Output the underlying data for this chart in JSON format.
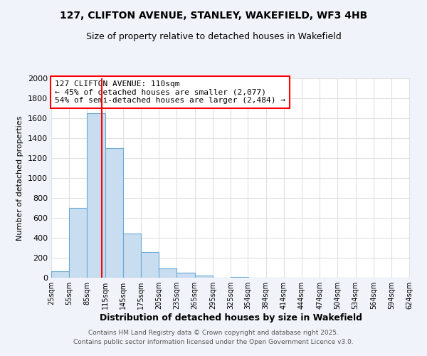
{
  "title": "127, CLIFTON AVENUE, STANLEY, WAKEFIELD, WF3 4HB",
  "subtitle": "Size of property relative to detached houses in Wakefield",
  "xlabel": "Distribution of detached houses by size in Wakefield",
  "ylabel": "Number of detached properties",
  "bins_left": [
    25,
    55,
    85,
    115,
    145,
    175,
    205,
    235,
    265,
    295,
    325,
    354,
    384,
    414,
    444,
    474,
    504,
    534,
    564,
    594
  ],
  "bin_width": 30,
  "counts": [
    65,
    700,
    1650,
    1300,
    440,
    255,
    90,
    50,
    25,
    0,
    10,
    0,
    0,
    0,
    0,
    0,
    0,
    0,
    0,
    0
  ],
  "bar_color": "#c9ddf0",
  "bar_edge_color": "#6aaad4",
  "vline_x": 110,
  "vline_color": "red",
  "ylim": [
    0,
    2000
  ],
  "yticks": [
    0,
    200,
    400,
    600,
    800,
    1000,
    1200,
    1400,
    1600,
    1800,
    2000
  ],
  "xlim_left": 25,
  "xlim_right": 625,
  "annotation_text": "127 CLIFTON AVENUE: 110sqm\n← 45% of detached houses are smaller (2,077)\n54% of semi-detached houses are larger (2,484) →",
  "annotation_box_color": "white",
  "annotation_box_edge_color": "red",
  "footer_line1": "Contains HM Land Registry data © Crown copyright and database right 2025.",
  "footer_line2": "Contains public sector information licensed under the Open Government Licence v3.0.",
  "tick_labels": [
    "25sqm",
    "55sqm",
    "85sqm",
    "115sqm",
    "145sqm",
    "175sqm",
    "205sqm",
    "235sqm",
    "265sqm",
    "295sqm",
    "325sqm",
    "354sqm",
    "384sqm",
    "414sqm",
    "444sqm",
    "474sqm",
    "504sqm",
    "534sqm",
    "564sqm",
    "594sqm",
    "624sqm"
  ],
  "plot_bg_color": "#ffffff",
  "fig_bg_color": "#f0f4fa",
  "title_fontsize": 10,
  "subtitle_fontsize": 9,
  "ylabel_fontsize": 8,
  "xlabel_fontsize": 9,
  "tick_fontsize": 7,
  "annotation_fontsize": 8,
  "footer_fontsize": 6.5,
  "grid_color": "#e0e0e0",
  "vline_linewidth": 1.5
}
